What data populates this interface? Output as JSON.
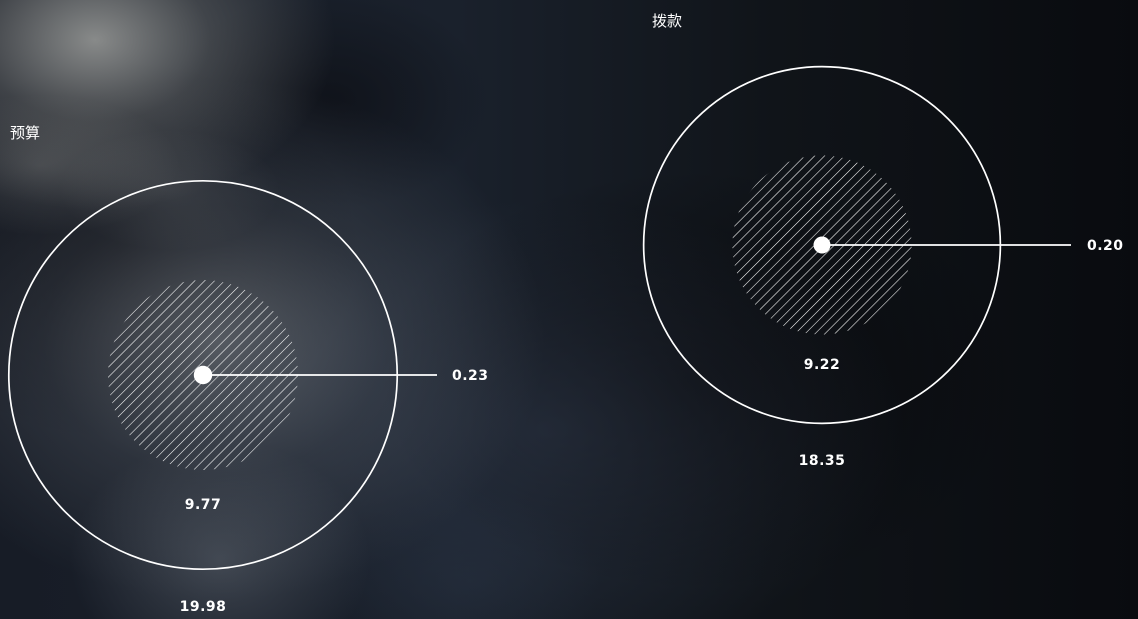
{
  "chart_data": [
    {
      "type": "other",
      "title": "预算",
      "outer_value": 19.98,
      "outer_label": "19.98",
      "inner_value": 9.77,
      "inner_label": "9.77",
      "center_value": 0.23,
      "center_label": "0.23"
    },
    {
      "type": "other",
      "title": "拨款",
      "outer_value": 18.35,
      "outer_label": "18.35",
      "inner_value": 9.22,
      "inner_label": "9.22",
      "center_value": 0.2,
      "center_label": "0.20"
    }
  ],
  "colors": {
    "ink": "#ffffff"
  }
}
